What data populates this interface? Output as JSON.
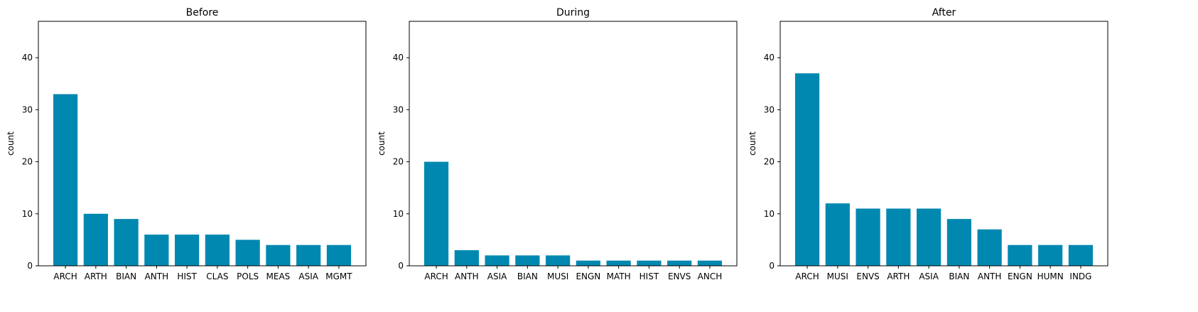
{
  "chart_data": [
    {
      "type": "bar",
      "title": "Before",
      "ylabel": "count",
      "xlabel": "",
      "ylim": [
        0,
        47
      ],
      "yticks": [
        0,
        10,
        20,
        30,
        40
      ],
      "categories": [
        "ARCH",
        "ARTH",
        "BIAN",
        "ANTH",
        "HIST",
        "CLAS",
        "POLS",
        "MEAS",
        "ASIA",
        "MGMT"
      ],
      "values": [
        33,
        10,
        9,
        6,
        6,
        6,
        5,
        4,
        4,
        4
      ],
      "bar_color": "#0088b0",
      "grid": false
    },
    {
      "type": "bar",
      "title": "During",
      "ylabel": "count",
      "xlabel": "",
      "ylim": [
        0,
        47
      ],
      "yticks": [
        0,
        10,
        20,
        30,
        40
      ],
      "categories": [
        "ARCH",
        "ANTH",
        "ASIA",
        "BIAN",
        "MUSI",
        "ENGN",
        "MATH",
        "HIST",
        "ENVS",
        "ANCH"
      ],
      "values": [
        20,
        3,
        2,
        2,
        2,
        1,
        1,
        1,
        1,
        1
      ],
      "bar_color": "#0088b0",
      "grid": false
    },
    {
      "type": "bar",
      "title": "After",
      "ylabel": "count",
      "xlabel": "",
      "ylim": [
        0,
        47
      ],
      "yticks": [
        0,
        10,
        20,
        30,
        40
      ],
      "categories": [
        "ARCH",
        "MUSI",
        "ENVS",
        "ARTH",
        "ASIA",
        "BIAN",
        "ANTH",
        "ENGN",
        "HUMN",
        "INDG"
      ],
      "values": [
        37,
        12,
        11,
        11,
        11,
        9,
        7,
        4,
        4,
        4
      ],
      "bar_color": "#0088b0",
      "grid": false
    }
  ]
}
